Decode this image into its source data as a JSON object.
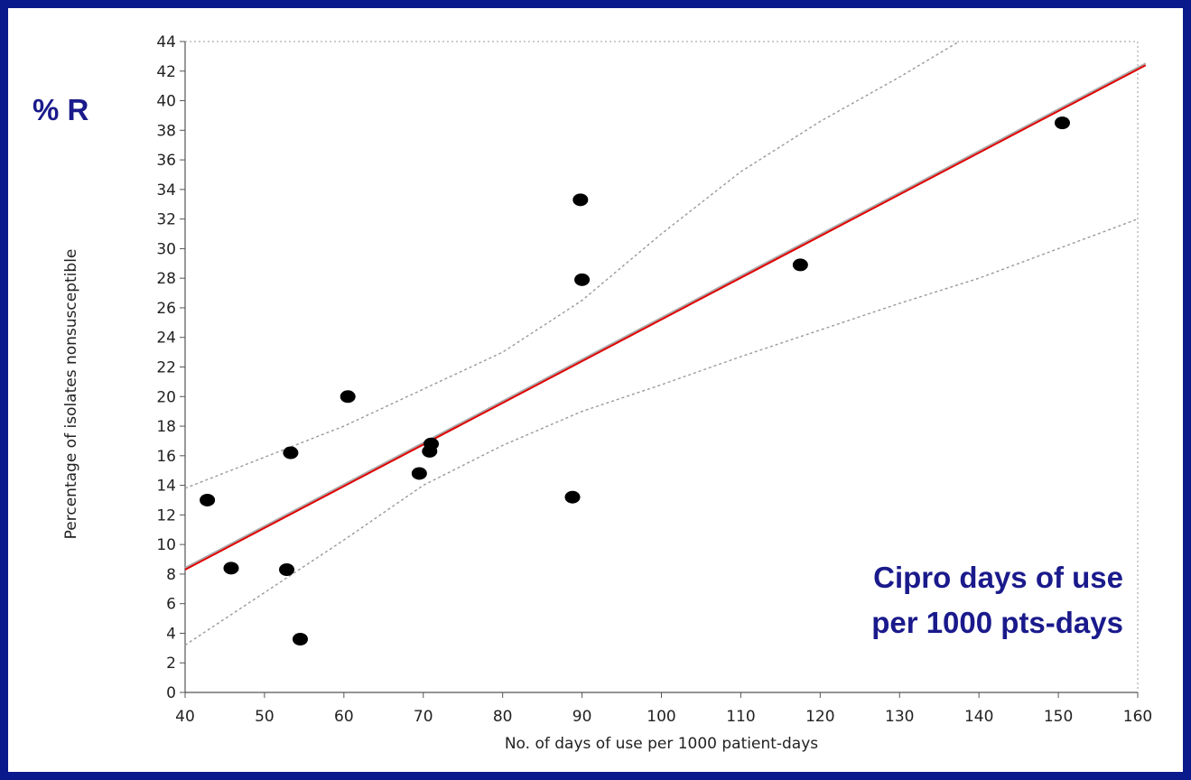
{
  "overlay": {
    "y_label": "% R",
    "x_label_line1": "Cipro days of use",
    "x_label_line2": "per 1000 pts-days"
  },
  "colors": {
    "background": "#0a1a8c",
    "overlay_text": "#1a1a8c",
    "fit_line": "#e00000",
    "points": "#000000",
    "confidence_band": "#999999"
  },
  "chart_data": {
    "type": "scatter",
    "xlabel": "No. of days of use per 1000 patient-days",
    "ylabel": "Percentage of isolates nonsusceptible",
    "xlim": [
      40,
      160
    ],
    "ylim": [
      0,
      44
    ],
    "x_ticks": [
      40,
      50,
      60,
      70,
      80,
      90,
      100,
      110,
      120,
      130,
      140,
      150,
      160
    ],
    "y_ticks": [
      0,
      2,
      4,
      6,
      8,
      10,
      12,
      14,
      16,
      18,
      20,
      22,
      24,
      26,
      28,
      30,
      32,
      34,
      36,
      38,
      40,
      42,
      44
    ],
    "points": [
      {
        "x": 42.8,
        "y": 13.0
      },
      {
        "x": 45.8,
        "y": 8.4
      },
      {
        "x": 52.8,
        "y": 8.3
      },
      {
        "x": 53.3,
        "y": 16.2
      },
      {
        "x": 54.5,
        "y": 3.6
      },
      {
        "x": 60.5,
        "y": 20.0
      },
      {
        "x": 69.5,
        "y": 14.8
      },
      {
        "x": 70.8,
        "y": 16.3
      },
      {
        "x": 71.0,
        "y": 16.8
      },
      {
        "x": 88.8,
        "y": 13.2
      },
      {
        "x": 89.8,
        "y": 33.3
      },
      {
        "x": 90.0,
        "y": 27.9
      },
      {
        "x": 117.5,
        "y": 28.9
      },
      {
        "x": 150.5,
        "y": 38.5
      }
    ],
    "fit_line": {
      "x": [
        40,
        161
      ],
      "y": [
        8.3,
        42.4
      ]
    },
    "confidence_bands": [
      {
        "name": "upper",
        "x": [
          40,
          60,
          70,
          80,
          90,
          100,
          110,
          120,
          130,
          137.5
        ],
        "y": [
          13.8,
          18.0,
          20.5,
          23.0,
          26.5,
          31.0,
          35.2,
          38.6,
          41.6,
          44
        ]
      },
      {
        "name": "lower",
        "x": [
          40,
          60,
          70,
          80,
          90,
          100,
          110,
          120,
          130,
          140,
          150,
          160
        ],
        "y": [
          3.2,
          10.3,
          14.0,
          16.7,
          19.0,
          20.8,
          22.7,
          24.5,
          26.3,
          28.0,
          30.0,
          32.0
        ]
      }
    ],
    "grid": false
  }
}
